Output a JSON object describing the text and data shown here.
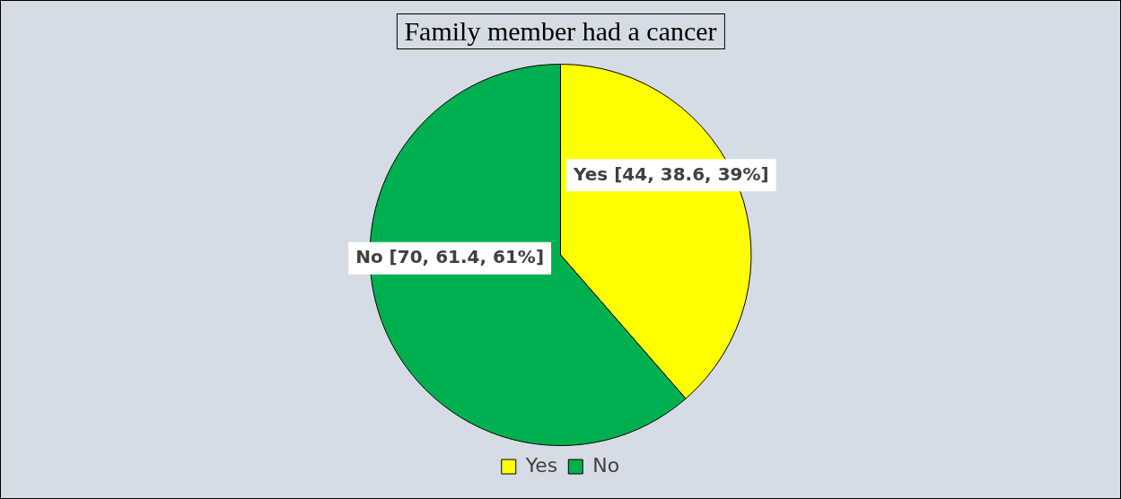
{
  "chart_data": {
    "type": "pie",
    "title": "Family member had a cancer",
    "categories": [
      "Yes",
      "No"
    ],
    "values": [
      44,
      70
    ],
    "colors": [
      "#ffff00",
      "#00b050"
    ],
    "value_labels": [
      "Yes [44, 38.6, 39%]",
      "No [70, 61.4, 61%]"
    ],
    "legend": "bottom"
  }
}
